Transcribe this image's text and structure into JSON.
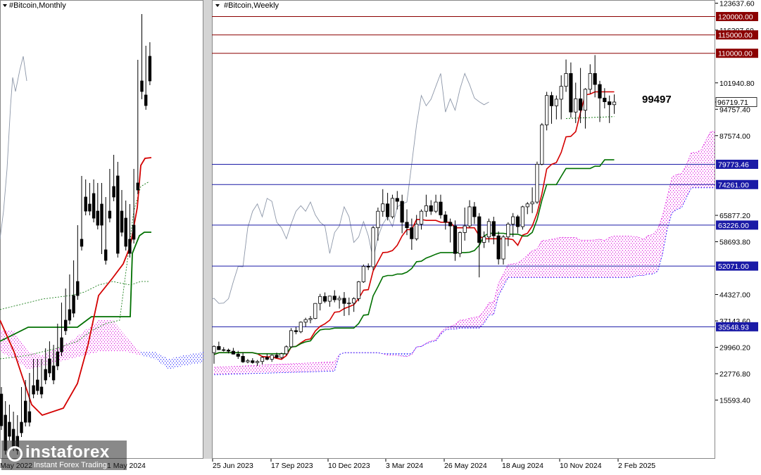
{
  "left_panel": {
    "title": "#Bitcoin,Monthly",
    "date_labels": [
      "May 2022",
      "1 May 2024"
    ]
  },
  "right_panel": {
    "title": "#Bitcoin,Weekly",
    "annotation": "99497",
    "price_ticks": [
      "123637.60",
      "116307.60",
      "101940.80",
      "94757.40",
      "87574.00",
      "65877.20",
      "58693.80",
      "44327.00",
      "37143.60",
      "29960.20",
      "22776.80",
      "15593.40"
    ],
    "date_labels": [
      "25 Jun 2023",
      "17 Sep 2023",
      "10 Dec 2023",
      "3 Mar 2024",
      "26 May 2024",
      "18 Aug 2024",
      "10 Nov 2024",
      "2 Feb 2025"
    ],
    "current_price": "96719.71",
    "levels": [
      {
        "price": 120000,
        "label": "120000.00",
        "color": "#8b0000"
      },
      {
        "price": 115000,
        "label": "115000.00",
        "color": "#8b0000"
      },
      {
        "price": 110000,
        "label": "110000.00",
        "color": "#8b0000"
      },
      {
        "price": 79773.46,
        "label": "79773.46",
        "color": "#1a1aa6"
      },
      {
        "price": 74261.0,
        "label": "74261.00",
        "color": "#1a1aa6"
      },
      {
        "price": 63226.0,
        "label": "63226.00",
        "color": "#1a1aa6"
      },
      {
        "price": 52071.0,
        "label": "52071.00",
        "color": "#1a1aa6"
      },
      {
        "price": 35548.93,
        "label": "35548.93",
        "color": "#1a1aa6"
      }
    ]
  },
  "watermark": {
    "logo": "instaforex",
    "tagline": "Instant Forex Trading"
  },
  "colors": {
    "tenkan": "#d40000",
    "kijun": "#007000",
    "senkou": "#1a1aff",
    "cloud": "#e020e0",
    "chikou": "#8c96a8",
    "level_red": "#8b0000",
    "level_blue": "#1a1aa6"
  },
  "chart_data": [
    {
      "type": "candlestick",
      "title": "#Bitcoin,Monthly",
      "indicators": [
        "Ichimoku Kinko Hyo"
      ]
    },
    {
      "type": "candlestick",
      "title": "#Bitcoin,Weekly",
      "indicators": [
        "Ichimoku Kinko Hyo"
      ],
      "ylim": [
        14000,
        125000
      ],
      "horizontal_levels": [
        120000,
        115000,
        110000,
        79773.46,
        74261.0,
        63226.0,
        52071.0,
        35548.93
      ],
      "last_price": 96719.71,
      "annotation_value": 99497,
      "x_tick_labels": [
        "25 Jun 2023",
        "17 Sep 2023",
        "10 Dec 2023",
        "3 Mar 2024",
        "26 May 2024",
        "18 Aug 2024",
        "10 Nov 2024",
        "2 Feb 2025"
      ],
      "y_tick_labels": [
        123637.6,
        116307.6,
        101940.8,
        94757.4,
        87574.0,
        65877.2,
        58693.8,
        44327.0,
        37143.6,
        29960.2,
        22776.8,
        15593.4
      ],
      "candles_ohlc_approx": [
        [
          28500,
          30500,
          25500,
          30200
        ],
        [
          30200,
          31500,
          29200,
          29300
        ],
        [
          29300,
          30000,
          28800,
          29200
        ],
        [
          29200,
          29600,
          28300,
          28900
        ],
        [
          28900,
          29800,
          28000,
          28100
        ],
        [
          28100,
          29000,
          26800,
          27500
        ],
        [
          27500,
          28500,
          25700,
          26000
        ],
        [
          26000,
          26800,
          25600,
          26300
        ],
        [
          26300,
          27000,
          25500,
          25800
        ],
        [
          25800,
          26500,
          24900,
          26100
        ],
        [
          26100,
          27500,
          25300,
          27200
        ],
        [
          27200,
          28200,
          26400,
          26700
        ],
        [
          26700,
          28000,
          26000,
          27800
        ],
        [
          27800,
          28500,
          27000,
          27200
        ],
        [
          27200,
          28500,
          26800,
          28200
        ],
        [
          28200,
          30500,
          27800,
          30100
        ],
        [
          30100,
          35200,
          29800,
          34500
        ],
        [
          34500,
          35500,
          33500,
          34200
        ],
        [
          34200,
          37000,
          33800,
          36800
        ],
        [
          36800,
          38000,
          35500,
          37500
        ],
        [
          37500,
          38500,
          36500,
          37800
        ],
        [
          37800,
          42000,
          37600,
          41900
        ],
        [
          41900,
          44500,
          40000,
          43800
        ],
        [
          43800,
          44900,
          42000,
          42500
        ],
        [
          42500,
          44000,
          41000,
          43900
        ],
        [
          43900,
          45500,
          42200,
          42900
        ],
        [
          42900,
          44000,
          40500,
          43300
        ],
        [
          43300,
          45000,
          38500,
          41900
        ],
        [
          41900,
          43500,
          38700,
          42000
        ],
        [
          42000,
          43600,
          39600,
          43200
        ],
        [
          43200,
          48000,
          42500,
          47800
        ],
        [
          47800,
          52500,
          47500,
          52000
        ],
        [
          52000,
          52800,
          51000,
          51900
        ],
        [
          51900,
          63000,
          51000,
          62500
        ],
        [
          62500,
          68000,
          59000,
          67000
        ],
        [
          67000,
          73000,
          65500,
          69000
        ],
        [
          69000,
          72000,
          64500,
          65500
        ],
        [
          65500,
          71500,
          65000,
          70500
        ],
        [
          70500,
          72500,
          67500,
          69700
        ],
        [
          69700,
          71500,
          61000,
          64000
        ],
        [
          64000,
          67500,
          60500,
          62500
        ],
        [
          62500,
          65000,
          56500,
          59500
        ],
        [
          59500,
          66000,
          59000,
          63500
        ],
        [
          63500,
          67500,
          62000,
          67000
        ],
        [
          67000,
          71500,
          65500,
          68500
        ],
        [
          68500,
          70000,
          66000,
          67000
        ],
        [
          67000,
          71500,
          66500,
          69500
        ],
        [
          69500,
          71500,
          65000,
          66000
        ],
        [
          66000,
          67000,
          62000,
          64000
        ],
        [
          64000,
          65000,
          58500,
          63000
        ],
        [
          63000,
          64500,
          53500,
          55500
        ],
        [
          55500,
          61500,
          54500,
          61200
        ],
        [
          61200,
          68000,
          59000,
          63000
        ],
        [
          63000,
          70000,
          62500,
          68200
        ],
        [
          68200,
          69500,
          63500,
          65500
        ],
        [
          65500,
          66500,
          49000,
          58500
        ],
        [
          58500,
          61500,
          57000,
          60000
        ],
        [
          60000,
          65000,
          58500,
          64200
        ],
        [
          64200,
          65500,
          58000,
          60300
        ],
        [
          60300,
          61500,
          52500,
          54000
        ],
        [
          54000,
          60500,
          52500,
          60000
        ],
        [
          60000,
          64000,
          57500,
          63500
        ],
        [
          63500,
          66500,
          60000,
          65500
        ],
        [
          65500,
          66000,
          61000,
          62800
        ],
        [
          62800,
          68500,
          62000,
          68200
        ],
        [
          68200,
          69500,
          66200,
          69000
        ],
        [
          69000,
          73500,
          66500,
          69500
        ],
        [
          69500,
          80500,
          69000,
          79800
        ],
        [
          79800,
          91000,
          79500,
          90500
        ],
        [
          90500,
          99500,
          89000,
          98500
        ],
        [
          98500,
          99500,
          90800,
          95700
        ],
        [
          95700,
          98500,
          92000,
          97500
        ],
        [
          97500,
          104000,
          92000,
          101000
        ],
        [
          101000,
          108300,
          99500,
          104500
        ],
        [
          104500,
          107500,
          92500,
          94000
        ],
        [
          94000,
          102000,
          91000,
          97600
        ],
        [
          97600,
          106000,
          91000,
          94500
        ],
        [
          94500,
          100500,
          89500,
          100200
        ],
        [
          100200,
          107000,
          99000,
          104500
        ],
        [
          104500,
          109500,
          98000,
          101500
        ],
        [
          101500,
          102500,
          91300,
          97800
        ],
        [
          97800,
          100500,
          95000,
          96800
        ],
        [
          96800,
          98500,
          91000,
          96000
        ],
        [
          96000,
          98800,
          93500,
          96719.71
        ]
      ]
    }
  ]
}
